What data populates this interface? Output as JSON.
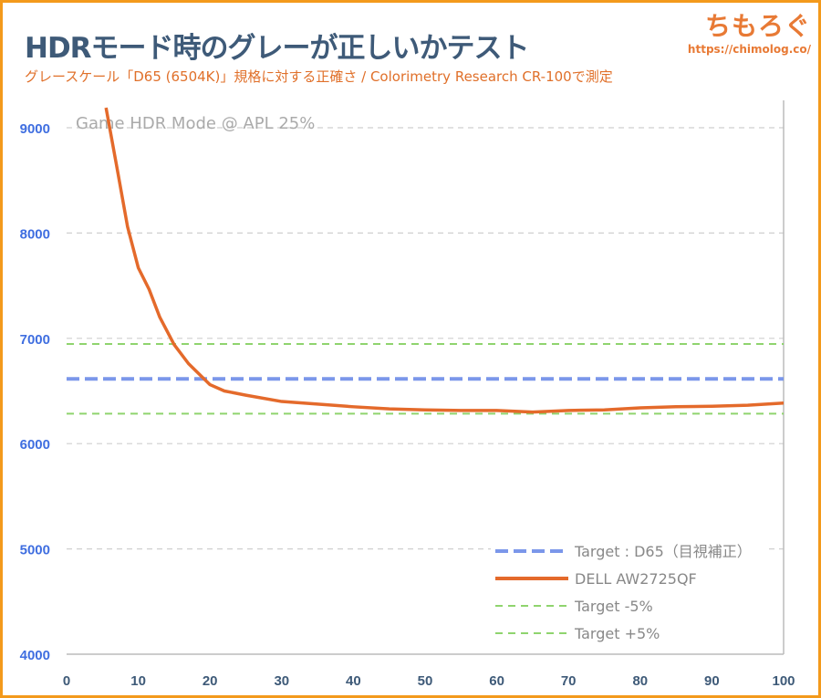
{
  "header": {
    "title": "HDRモード時のグレーが正しいかテスト",
    "subtitle": "グレースケール「D65 (6504K)」規格に対する正確さ / Colorimetry Research CR-100で測定",
    "logo": "ちもろぐ",
    "logo_url": "https://chimolog.co/"
  },
  "chart_data": {
    "type": "line",
    "annotation": "Game HDR Mode @ APL 25%",
    "xlim": [
      0,
      100
    ],
    "ylim": [
      4000,
      9000
    ],
    "xticks": [
      0,
      10,
      20,
      30,
      40,
      50,
      60,
      70,
      80,
      90,
      100
    ],
    "yticks": [
      4000,
      5000,
      6000,
      7000,
      8000,
      9000
    ],
    "grid": true,
    "legend_position": "bottom-right",
    "colors": {
      "target": "#7b97ea",
      "dell": "#e46a2b",
      "band": "#8fd46e"
    },
    "series": [
      {
        "name": "Target : D65（目視補正）",
        "type": "hline",
        "value": 6615
      },
      {
        "name": "DELL AW2725QF",
        "x": [
          5.5,
          7,
          8.5,
          10,
          11.5,
          13,
          15,
          17,
          20,
          22,
          25,
          30,
          35,
          40,
          45,
          50,
          55,
          60,
          65,
          70,
          75,
          80,
          85,
          90,
          95,
          100
        ],
        "y": [
          9190,
          8630,
          8060,
          7670,
          7466,
          7200,
          6940,
          6760,
          6560,
          6500,
          6460,
          6400,
          6375,
          6350,
          6330,
          6320,
          6315,
          6315,
          6300,
          6315,
          6320,
          6340,
          6350,
          6355,
          6365,
          6385
        ]
      },
      {
        "name": "Target -5%",
        "type": "hline",
        "value": 6284
      },
      {
        "name": "Target +5%",
        "type": "hline",
        "value": 6946
      }
    ]
  }
}
